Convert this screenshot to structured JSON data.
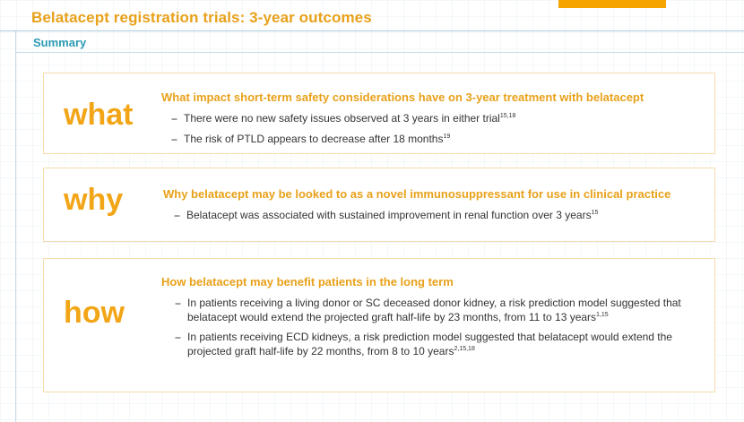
{
  "header": {
    "title": "Belatacept registration trials: 3-year outcomes",
    "accent_color": "#f5a400"
  },
  "section": {
    "label": "Summary"
  },
  "cards": {
    "what": {
      "keyword": "what",
      "heading": "What impact short-term safety considerations have on 3-year treatment with belatacept",
      "bullets": [
        {
          "text": "There were no new safety issues observed at 3 years in either trial",
          "ref": "15,18"
        },
        {
          "text": "The risk of PTLD appears to decrease after 18 months",
          "ref": "19"
        }
      ]
    },
    "why": {
      "keyword": "why",
      "heading": "Why belatacept may be looked to as a novel immunosuppressant for use in clinical practice",
      "bullets": [
        {
          "text": "Belatacept was associated with sustained improvement in renal function over 3 years",
          "ref": "15"
        }
      ]
    },
    "how": {
      "keyword": "how",
      "heading": "How belatacept may benefit patients in the long term",
      "bullets": [
        {
          "text": "In patients receiving a living donor or SC deceased donor kidney, a risk prediction model suggested that belatacept would extend the projected graft half-life by 23 months, from 11 to 13 years",
          "ref": "1,15"
        },
        {
          "text": "In patients receiving ECD kidneys, a risk prediction model suggested that belatacept would extend the projected graft half-life by 22 months, from 8 to 10 years",
          "ref": "2,15,18"
        }
      ]
    }
  },
  "bullet_marker": "--"
}
